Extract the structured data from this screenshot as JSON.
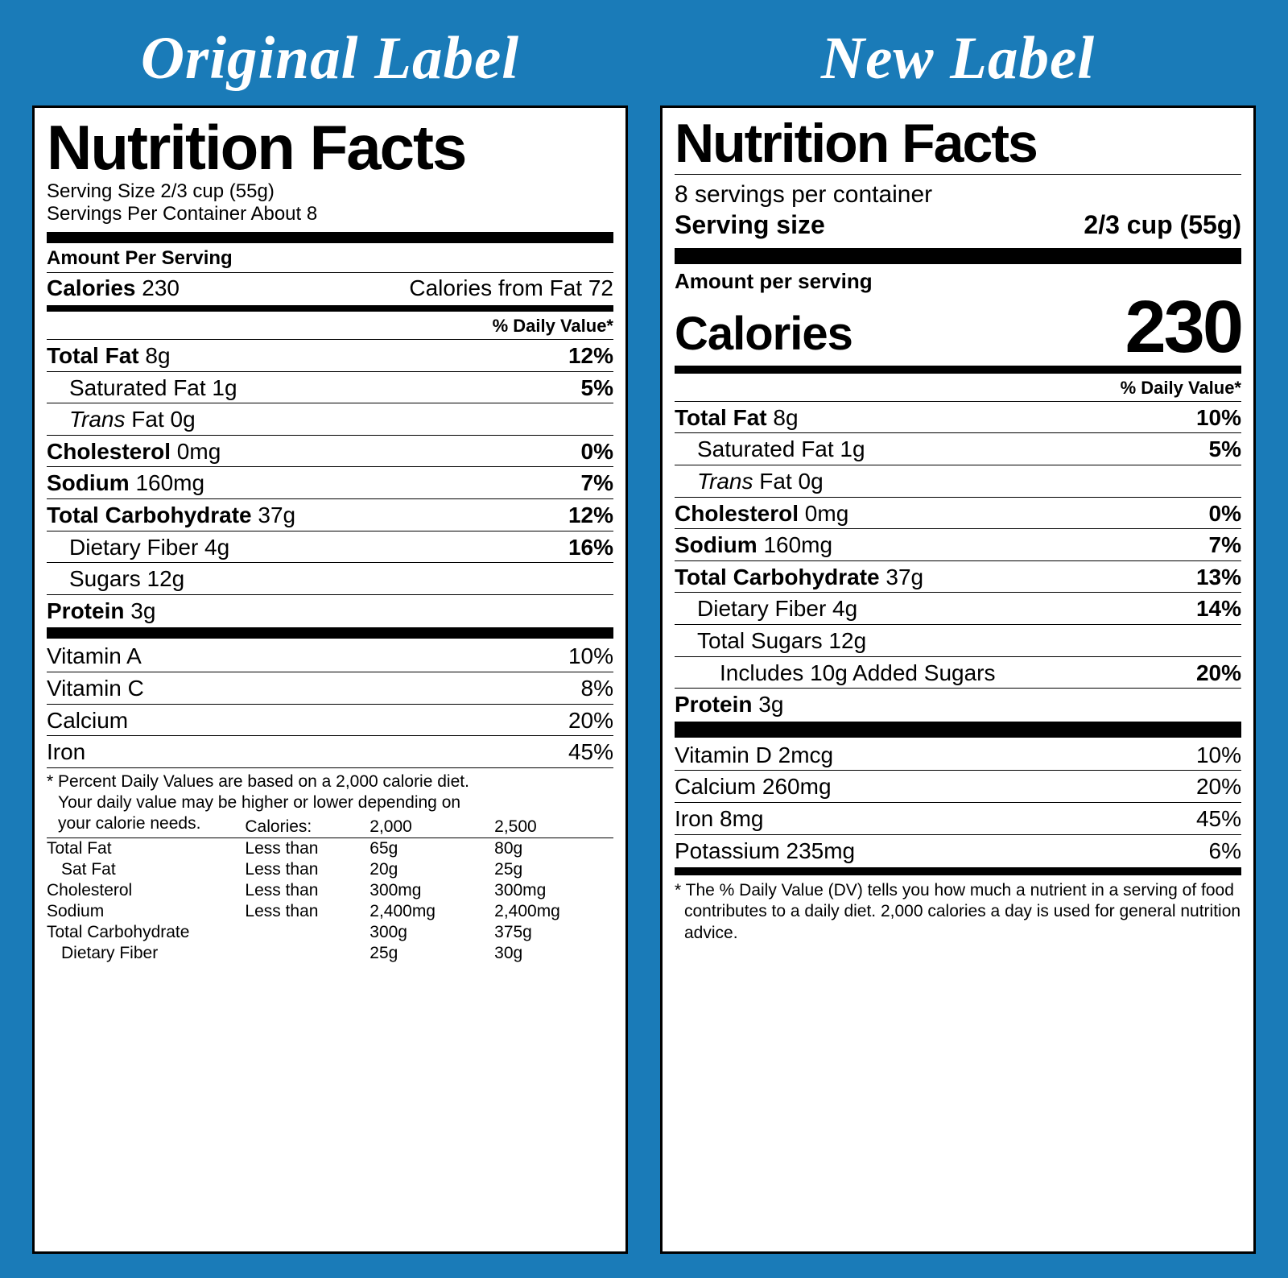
{
  "page": {
    "background_color": "#1a7bb8",
    "panel_title_color": "#ffffff",
    "label_bg": "#ffffff",
    "border_color": "#000000"
  },
  "original": {
    "panel_title": "Original Label",
    "title": "Nutrition Facts",
    "serving_size": "Serving Size 2/3 cup (55g)",
    "servings_per_container": "Servings Per Container About 8",
    "amount_per_serving": "Amount Per Serving",
    "calories_label": "Calories",
    "calories": "230",
    "calories_from_fat": "Calories from Fat 72",
    "dv_header": "% Daily Value*",
    "nutrients": [
      {
        "name": "Total Fat",
        "amt": "8g",
        "dv": "12%",
        "bold": true,
        "indent": 0
      },
      {
        "name": "Saturated Fat",
        "amt": "1g",
        "dv": "5%",
        "bold": false,
        "indent": 1
      },
      {
        "name_prefix_italic": "Trans",
        "name_rest": " Fat",
        "amt": "0g",
        "dv": "",
        "bold": false,
        "indent": 1
      },
      {
        "name": "Cholesterol",
        "amt": "0mg",
        "dv": "0%",
        "bold": true,
        "indent": 0
      },
      {
        "name": "Sodium",
        "amt": "160mg",
        "dv": "7%",
        "bold": true,
        "indent": 0
      },
      {
        "name": "Total Carbohydrate",
        "amt": "37g",
        "dv": "12%",
        "bold": true,
        "indent": 0
      },
      {
        "name": "Dietary Fiber",
        "amt": "4g",
        "dv": "16%",
        "bold": false,
        "indent": 1
      },
      {
        "name": "Sugars",
        "amt": "12g",
        "dv": "",
        "bold": false,
        "indent": 1
      },
      {
        "name": "Protein",
        "amt": "3g",
        "dv": "",
        "bold": true,
        "indent": 0
      }
    ],
    "vitamins": [
      {
        "name": "Vitamin A",
        "dv": "10%"
      },
      {
        "name": "Vitamin C",
        "dv": "8%"
      },
      {
        "name": "Calcium",
        "dv": "20%"
      },
      {
        "name": "Iron",
        "dv": "45%"
      }
    ],
    "footnote_lines": [
      "* Percent Daily Values are based on a 2,000 calorie diet.",
      "Your daily value may be higher or lower depending on",
      "your calorie needs."
    ],
    "ref_table": {
      "header": [
        "",
        "Calories:",
        "2,000",
        "2,500"
      ],
      "rows": [
        [
          "Total Fat",
          "Less than",
          "65g",
          "80g"
        ],
        [
          "Sat Fat",
          "Less than",
          "20g",
          "25g",
          true
        ],
        [
          "Cholesterol",
          "Less than",
          "300mg",
          "300mg"
        ],
        [
          "Sodium",
          "Less than",
          "2,400mg",
          "2,400mg"
        ],
        [
          "Total Carbohydrate",
          "",
          "300g",
          "375g"
        ],
        [
          "Dietary Fiber",
          "",
          "25g",
          "30g",
          true
        ]
      ]
    }
  },
  "new": {
    "panel_title": "New Label",
    "title": "Nutrition Facts",
    "servings_per_container": "8 servings per container",
    "serving_size_label": "Serving size",
    "serving_size_value": "2/3 cup (55g)",
    "amount_per_serving": "Amount per serving",
    "calories_label": "Calories",
    "calories": "230",
    "dv_header": "% Daily Value*",
    "nutrients": [
      {
        "name": "Total Fat",
        "amt": "8g",
        "dv": "10%",
        "bold": true,
        "indent": 0
      },
      {
        "name": "Saturated Fat",
        "amt": "1g",
        "dv": "5%",
        "bold": false,
        "indent": 1
      },
      {
        "name_prefix_italic": "Trans",
        "name_rest": " Fat",
        "amt": "0g",
        "dv": "",
        "bold": false,
        "indent": 1
      },
      {
        "name": "Cholesterol",
        "amt": "0mg",
        "dv": "0%",
        "bold": true,
        "indent": 0
      },
      {
        "name": "Sodium",
        "amt": "160mg",
        "dv": "7%",
        "bold": true,
        "indent": 0
      },
      {
        "name": "Total Carbohydrate",
        "amt": "37g",
        "dv": "13%",
        "bold": true,
        "indent": 0
      },
      {
        "name": "Dietary Fiber",
        "amt": "4g",
        "dv": "14%",
        "bold": false,
        "indent": 1
      },
      {
        "name": "Total Sugars",
        "amt": "12g",
        "dv": "",
        "bold": false,
        "indent": 1
      },
      {
        "name": "Includes 10g Added Sugars",
        "amt": "",
        "dv": "20%",
        "bold": false,
        "indent": 2
      },
      {
        "name": "Protein",
        "amt": "3g",
        "dv": "",
        "bold": true,
        "indent": 0
      }
    ],
    "vitamins": [
      {
        "name": "Vitamin D 2mcg",
        "dv": "10%"
      },
      {
        "name": "Calcium 260mg",
        "dv": "20%"
      },
      {
        "name": "Iron 8mg",
        "dv": "45%"
      },
      {
        "name": "Potassium 235mg",
        "dv": "6%"
      }
    ],
    "footnote": "* The % Daily Value (DV) tells you how much a nutrient in a serving of food contributes to a daily diet. 2,000 calories a day is used for general nutrition advice."
  }
}
